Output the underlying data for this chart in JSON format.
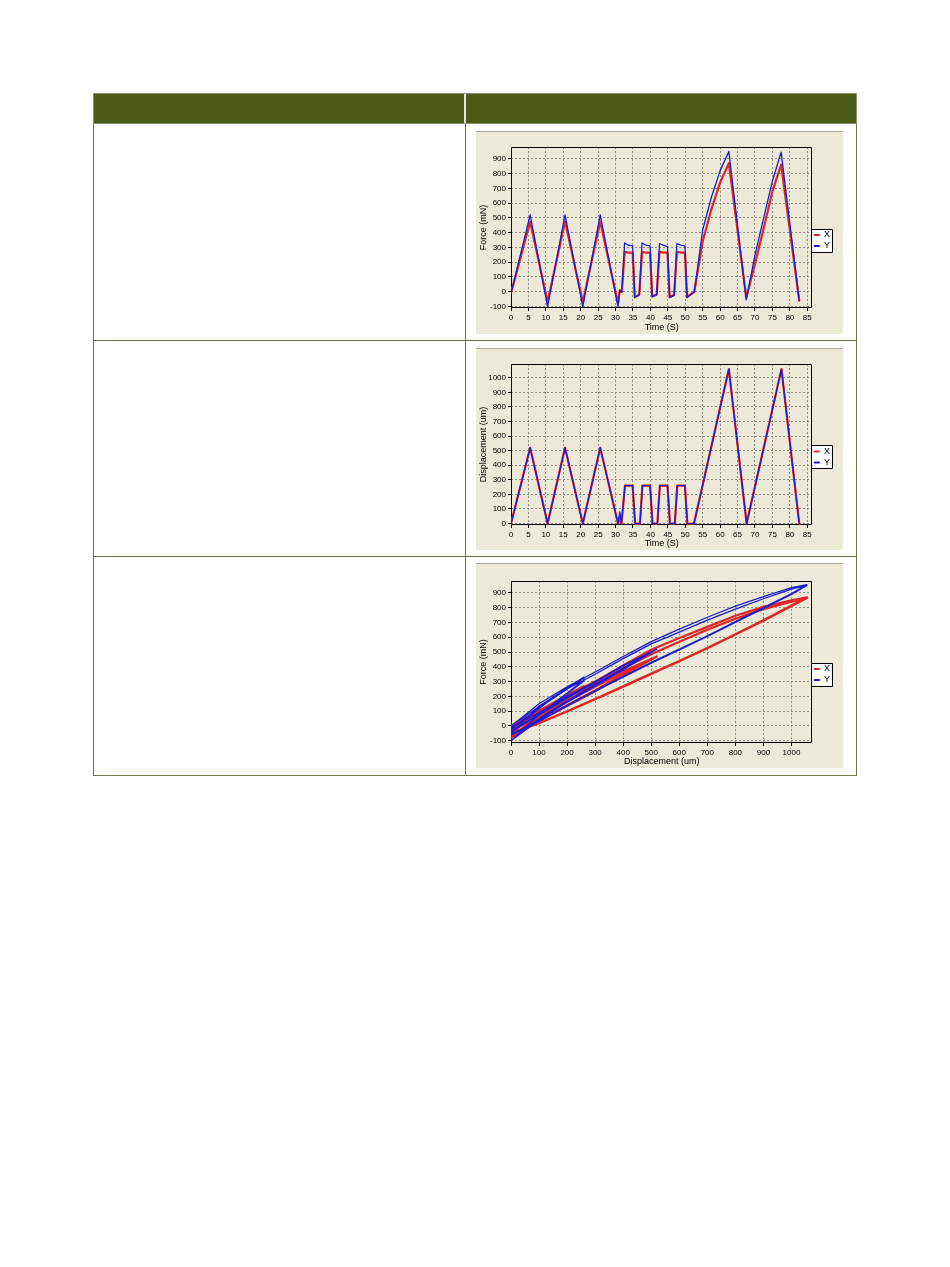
{
  "chart_data": [
    {
      "type": "line",
      "xlabel": "Time (S)",
      "ylabel": "Force (mN)",
      "xlim": [
        0,
        86.5
      ],
      "xticks": [
        0,
        5,
        10,
        15,
        20,
        25,
        30,
        35,
        40,
        45,
        50,
        55,
        60,
        65,
        70,
        75,
        80,
        85
      ],
      "ylim": [
        -110,
        980
      ],
      "yticks": [
        -100,
        0,
        100,
        200,
        300,
        400,
        500,
        600,
        700,
        800,
        900
      ],
      "grid": true,
      "legend": "right",
      "marker": "none",
      "line_style": "solid",
      "x": [
        0,
        5.5,
        10.5,
        15.5,
        20.6,
        25.6,
        30.7,
        31.2,
        31.8,
        32.6,
        33.7,
        34.9,
        35.5,
        36.8,
        37.6,
        38.7,
        39.9,
        40.5,
        41.8,
        42.6,
        43.7,
        44.9,
        45.5,
        46.8,
        47.6,
        48.7,
        49.9,
        50.5,
        52.6,
        55,
        57.5,
        60,
        62.5,
        67.5,
        70,
        72.5,
        75,
        77.5,
        82.7
      ],
      "series": [
        {
          "name": "X",
          "color": "#e02626",
          "values": [
            -10,
            475,
            -70,
            475,
            -70,
            475,
            -80,
            10,
            0,
            270,
            265,
            265,
            -35,
            -20,
            270,
            265,
            265,
            -30,
            -20,
            270,
            265,
            265,
            -35,
            -20,
            270,
            265,
            265,
            -35,
            0,
            340,
            560,
            740,
            870,
            -40,
            190,
            430,
            680,
            860,
            -60
          ]
        },
        {
          "name": "Y",
          "color": "#1c1cd2",
          "values": [
            -10,
            520,
            -100,
            520,
            -100,
            520,
            -100,
            10,
            0,
            330,
            315,
            310,
            -40,
            -20,
            330,
            315,
            310,
            -35,
            -20,
            325,
            315,
            305,
            -40,
            -25,
            325,
            315,
            310,
            -40,
            0,
            420,
            640,
            820,
            950,
            -55,
            250,
            500,
            750,
            945,
            -60
          ]
        }
      ]
    },
    {
      "type": "line",
      "xlabel": "Time (S)",
      "ylabel": "Displacement (um)",
      "xlim": [
        0,
        86.5
      ],
      "xticks": [
        0,
        5,
        10,
        15,
        20,
        25,
        30,
        35,
        40,
        45,
        50,
        55,
        60,
        65,
        70,
        75,
        80,
        85
      ],
      "ylim": [
        -10,
        1095
      ],
      "yticks": [
        0,
        100,
        200,
        300,
        400,
        500,
        600,
        700,
        800,
        900,
        1000
      ],
      "grid": true,
      "legend": "right",
      "marker": "none",
      "line_style": "solid",
      "x": [
        0,
        5.5,
        10.5,
        15.5,
        20.6,
        25.6,
        30.7,
        31.2,
        31.7,
        32.7,
        34.9,
        35.6,
        37,
        37.7,
        39.9,
        40.6,
        42,
        42.7,
        44.9,
        45.6,
        47,
        47.7,
        49.9,
        50.6,
        52.5,
        62.5,
        67.6,
        77.6,
        82.7
      ],
      "series": [
        {
          "name": "X",
          "color": "#e02626",
          "values": [
            0,
            520,
            0,
            520,
            0,
            520,
            0,
            40,
            0,
            260,
            260,
            0,
            0,
            260,
            260,
            0,
            0,
            260,
            260,
            0,
            0,
            260,
            260,
            0,
            0,
            1060,
            0,
            1060,
            0
          ]
        },
        {
          "name": "Y",
          "color": "#1c1cd2",
          "values": [
            0,
            520,
            0,
            520,
            0,
            520,
            0,
            80,
            0,
            260,
            260,
            0,
            0,
            260,
            260,
            0,
            0,
            260,
            260,
            0,
            0,
            260,
            260,
            0,
            0,
            1060,
            0,
            1060,
            0
          ]
        }
      ]
    },
    {
      "type": "line",
      "xlabel": "Displacement (um)",
      "ylabel": "Force (mN)",
      "xlim": [
        0,
        1075
      ],
      "xticks": [
        0,
        100,
        200,
        300,
        400,
        500,
        600,
        700,
        800,
        900,
        1000
      ],
      "ylim": [
        -115,
        980
      ],
      "yticks": [
        -100,
        0,
        100,
        200,
        300,
        400,
        500,
        600,
        700,
        800,
        900
      ],
      "grid": true,
      "legend": "right",
      "marker": "none",
      "line_style": "solid",
      "x": [
        0,
        100,
        200,
        300,
        400,
        520,
        400,
        300,
        200,
        100,
        0,
        100,
        200,
        300,
        400,
        520,
        400,
        300,
        200,
        100,
        0,
        100,
        200,
        300,
        400,
        520,
        400,
        300,
        200,
        100,
        0,
        0,
        0,
        130,
        260,
        260,
        130,
        0,
        0,
        130,
        260,
        260,
        130,
        0,
        0,
        130,
        260,
        260,
        130,
        0,
        0,
        130,
        260,
        260,
        130,
        0,
        0,
        100,
        200,
        300,
        400,
        500,
        600,
        700,
        800,
        900,
        1000,
        1055,
        1000,
        900,
        800,
        700,
        600,
        500,
        400,
        300,
        200,
        100,
        0,
        100,
        200,
        300,
        400,
        500,
        600,
        700,
        800,
        900,
        1000,
        1055,
        1000,
        900,
        800,
        700,
        600,
        500,
        400,
        300,
        200,
        100,
        0
      ],
      "series": [
        {
          "name": "X",
          "color": "#e02626",
          "values": [
            -10,
            70,
            170,
            270,
            370,
            470,
            350,
            240,
            140,
            40,
            -70,
            60,
            165,
            265,
            365,
            470,
            345,
            235,
            135,
            35,
            -70,
            65,
            165,
            270,
            370,
            470,
            345,
            240,
            135,
            35,
            -80,
            10,
            0,
            135,
            270,
            265,
            100,
            -35,
            -20,
            135,
            270,
            265,
            95,
            -30,
            -20,
            130,
            270,
            265,
            100,
            -35,
            -20,
            130,
            270,
            265,
            100,
            -35,
            0,
            100,
            205,
            300,
            410,
            515,
            595,
            670,
            745,
            805,
            850,
            870,
            815,
            715,
            620,
            528,
            440,
            355,
            268,
            182,
            100,
            20,
            -45,
            90,
            190,
            285,
            390,
            485,
            570,
            650,
            725,
            790,
            840,
            865,
            810,
            712,
            618,
            525,
            438,
            352,
            265,
            180,
            98,
            18,
            -50
          ]
        },
        {
          "name": "Y",
          "color": "#1c1cd2",
          "values": [
            -10,
            90,
            200,
            300,
            405,
            520,
            390,
            280,
            170,
            50,
            -100,
            75,
            190,
            295,
            410,
            520,
            380,
            270,
            160,
            40,
            -100,
            80,
            195,
            300,
            410,
            520,
            385,
            275,
            165,
            45,
            -100,
            10,
            0,
            170,
            330,
            310,
            120,
            -40,
            -20,
            165,
            330,
            310,
            115,
            -35,
            -20,
            160,
            325,
            305,
            115,
            -40,
            -25,
            160,
            325,
            310,
            110,
            -40,
            0,
            150,
            265,
            365,
            470,
            570,
            655,
            735,
            810,
            875,
            935,
            955,
            895,
            800,
            705,
            610,
            520,
            430,
            335,
            240,
            140,
            35,
            -55,
            135,
            250,
            350,
            455,
            555,
            635,
            715,
            790,
            860,
            925,
            950,
            890,
            795,
            700,
            605,
            515,
            425,
            330,
            235,
            135,
            30,
            -60
          ]
        }
      ]
    }
  ]
}
